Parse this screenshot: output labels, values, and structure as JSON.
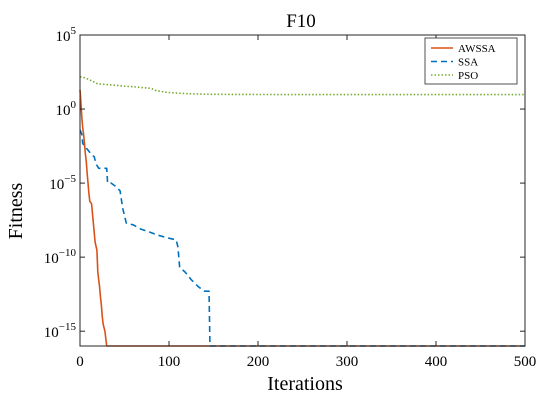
{
  "chart_data": {
    "type": "line",
    "title": "F10",
    "xlabel": "Iterations",
    "ylabel": "Fitness",
    "xlim": [
      0,
      500
    ],
    "ylim": [
      1e-16,
      100000.0
    ],
    "yscale": "log",
    "grid": false,
    "legend_position": "top-right",
    "x_ticks": [
      {
        "value": 0,
        "label": "0"
      },
      {
        "value": 100,
        "label": "100"
      },
      {
        "value": 200,
        "label": "200"
      },
      {
        "value": 300,
        "label": "300"
      },
      {
        "value": 400,
        "label": "400"
      },
      {
        "value": 500,
        "label": "500"
      }
    ],
    "y_ticks": [
      {
        "value": 1e-15,
        "base": "10",
        "exp": "−15"
      },
      {
        "value": 1e-10,
        "base": "10",
        "exp": "−10"
      },
      {
        "value": 1e-05,
        "base": "10",
        "exp": "−5"
      },
      {
        "value": 1,
        "base": "10",
        "exp": "0"
      },
      {
        "value": 100000.0,
        "base": "10",
        "exp": "5"
      }
    ],
    "series": [
      {
        "name": "AWSSA",
        "color": "#d95319",
        "style": "solid",
        "points": [
          [
            0,
            20
          ],
          [
            1,
            3
          ],
          [
            2,
            0.3
          ],
          [
            3,
            0.06
          ],
          [
            4,
            0.02
          ],
          [
            5,
            0.005
          ],
          [
            6,
            0.001
          ],
          [
            7,
            0.0003
          ],
          [
            8,
            5e-05
          ],
          [
            9,
            1e-05
          ],
          [
            10,
            2e-06
          ],
          [
            11,
            6e-07
          ],
          [
            13,
            4e-07
          ],
          [
            15,
            2e-08
          ],
          [
            17,
            1e-09
          ],
          [
            19,
            3e-10
          ],
          [
            20,
            1e-11
          ],
          [
            21,
            3e-12
          ],
          [
            22,
            1e-12
          ],
          [
            23,
            2e-13
          ],
          [
            24,
            6e-14
          ],
          [
            25,
            1e-14
          ],
          [
            26,
            3e-15
          ],
          [
            28,
            1e-15
          ],
          [
            30,
            1e-16
          ],
          [
            500,
            1e-16
          ]
        ]
      },
      {
        "name": "SSA",
        "color": "#0072bd",
        "style": "dashed",
        "points": [
          [
            0,
            0.04
          ],
          [
            2,
            0.02
          ],
          [
            3,
            0.005
          ],
          [
            5,
            0.003
          ],
          [
            8,
            0.002
          ],
          [
            12,
            0.001
          ],
          [
            16,
            0.0006
          ],
          [
            18,
            0.0002
          ],
          [
            21,
            0.0001
          ],
          [
            25,
            0.0001
          ],
          [
            30,
            0.0001
          ],
          [
            31,
            1e-05
          ],
          [
            35,
            1e-05
          ],
          [
            40,
            6e-06
          ],
          [
            45,
            3e-06
          ],
          [
            48,
            2e-07
          ],
          [
            52,
            2e-08
          ],
          [
            60,
            1.5e-08
          ],
          [
            68,
            8e-09
          ],
          [
            78,
            5e-09
          ],
          [
            88,
            3e-09
          ],
          [
            98,
            2e-09
          ],
          [
            108,
            1.5e-09
          ],
          [
            110,
            5e-10
          ],
          [
            112,
            2e-11
          ],
          [
            118,
            1e-11
          ],
          [
            125,
            3e-12
          ],
          [
            133,
            1e-12
          ],
          [
            140,
            5e-13
          ],
          [
            145,
            5e-13
          ],
          [
            146,
            1e-16
          ],
          [
            500,
            1e-16
          ]
        ]
      },
      {
        "name": "PSO",
        "color": "#77ac30",
        "style": "dotted",
        "points": [
          [
            0,
            150
          ],
          [
            5,
            130
          ],
          [
            10,
            100
          ],
          [
            15,
            70
          ],
          [
            20,
            50
          ],
          [
            30,
            45
          ],
          [
            40,
            40
          ],
          [
            50,
            35
          ],
          [
            60,
            32
          ],
          [
            70,
            28
          ],
          [
            80,
            25
          ],
          [
            85,
            18
          ],
          [
            90,
            16
          ],
          [
            95,
            14
          ],
          [
            100,
            13
          ],
          [
            110,
            12
          ],
          [
            120,
            11
          ],
          [
            130,
            10.5
          ],
          [
            140,
            10
          ],
          [
            160,
            9.8
          ],
          [
            200,
            9.6
          ],
          [
            300,
            9.5
          ],
          [
            400,
            9.5
          ],
          [
            500,
            9.5
          ]
        ]
      }
    ]
  }
}
